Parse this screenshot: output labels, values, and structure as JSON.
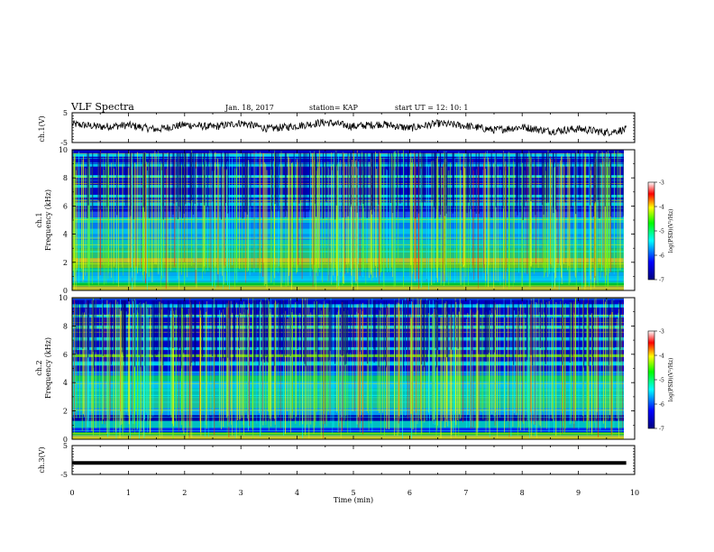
{
  "header": {
    "title": "VLF Spectra",
    "date": "Jan. 18, 2017",
    "station": "station= KAP",
    "start": "start UT =   12: 10: 1"
  },
  "chart_data": [
    {
      "type": "line",
      "panel": "waveform-ch1",
      "ylabel": "ch.1(V)",
      "ylim": [
        -5,
        5
      ],
      "yticks": [
        "5",
        "-5"
      ],
      "xlim": [
        0,
        10
      ],
      "data_end_min": 9.85,
      "x": [
        0,
        0.5,
        1,
        1.5,
        2,
        2.5,
        3,
        3.5,
        4,
        4.5,
        5,
        5.5,
        6,
        6.5,
        7,
        7.5,
        8,
        8.5,
        9,
        9.5,
        9.85
      ],
      "values": [
        1.2,
        0.3,
        0.8,
        -0.6,
        1.0,
        0.2,
        1.6,
        -0.4,
        0.6,
        1.8,
        0.4,
        1.2,
        -0.2,
        1.4,
        0.6,
        -0.8,
        0.2,
        -1.2,
        -0.4,
        -1.6,
        -0.6
      ],
      "color": "#000000"
    },
    {
      "type": "heatmap",
      "panel": "spectrogram-ch1",
      "ylabel": "ch.1 Frequency (kHz)",
      "ylabel_lines": [
        "ch.1",
        "Frequency (kHz)"
      ],
      "ylim": [
        0,
        10
      ],
      "yticks": [
        "0",
        "2",
        "4",
        "6",
        "8",
        "10"
      ],
      "xlim": [
        0,
        10
      ],
      "data_end_min": 9.85,
      "colorbar": {
        "label": "log(PSD)(V²/Hz)",
        "range": [
          -7,
          -3
        ],
        "ticks": [
          "-3",
          "-4",
          "-5",
          "-6",
          "-7"
        ],
        "colors": [
          "#00007f",
          "#0000ff",
          "#00ffff",
          "#00ff00",
          "#ffff00",
          "#ff0000",
          "#ffffff"
        ]
      }
    },
    {
      "type": "heatmap",
      "panel": "spectrogram-ch2",
      "ylabel": "ch.2 Frequency (kHz)",
      "ylabel_lines": [
        "ch.2",
        "Frequency (kHz)"
      ],
      "ylim": [
        0,
        10
      ],
      "yticks": [
        "0",
        "2",
        "4",
        "6",
        "8",
        "10"
      ],
      "xlim": [
        0,
        10
      ],
      "data_end_min": 9.85,
      "colorbar": {
        "label": "log(PSD)(V²/Hz)",
        "range": [
          -7,
          -3
        ],
        "ticks": [
          "-3",
          "-4",
          "-5",
          "-6",
          "-7"
        ],
        "colors": [
          "#00007f",
          "#0000ff",
          "#00ffff",
          "#00ff00",
          "#ffff00",
          "#ff0000",
          "#ffffff"
        ]
      }
    },
    {
      "type": "line",
      "panel": "waveform-ch3",
      "ylabel": "ch.3(V)",
      "ylim": [
        -5,
        5
      ],
      "yticks": [
        "5",
        "-5"
      ],
      "xlim": [
        0,
        10
      ],
      "data_end_min": 9.85,
      "x": [
        0,
        9.85
      ],
      "values": [
        -1.0,
        -1.0
      ],
      "color": "#000000"
    }
  ],
  "xaxis": {
    "label": "Time (min)",
    "ticks": [
      "0",
      "1",
      "2",
      "3",
      "4",
      "5",
      "6",
      "7",
      "8",
      "9",
      "10"
    ],
    "range": [
      0,
      10
    ]
  }
}
